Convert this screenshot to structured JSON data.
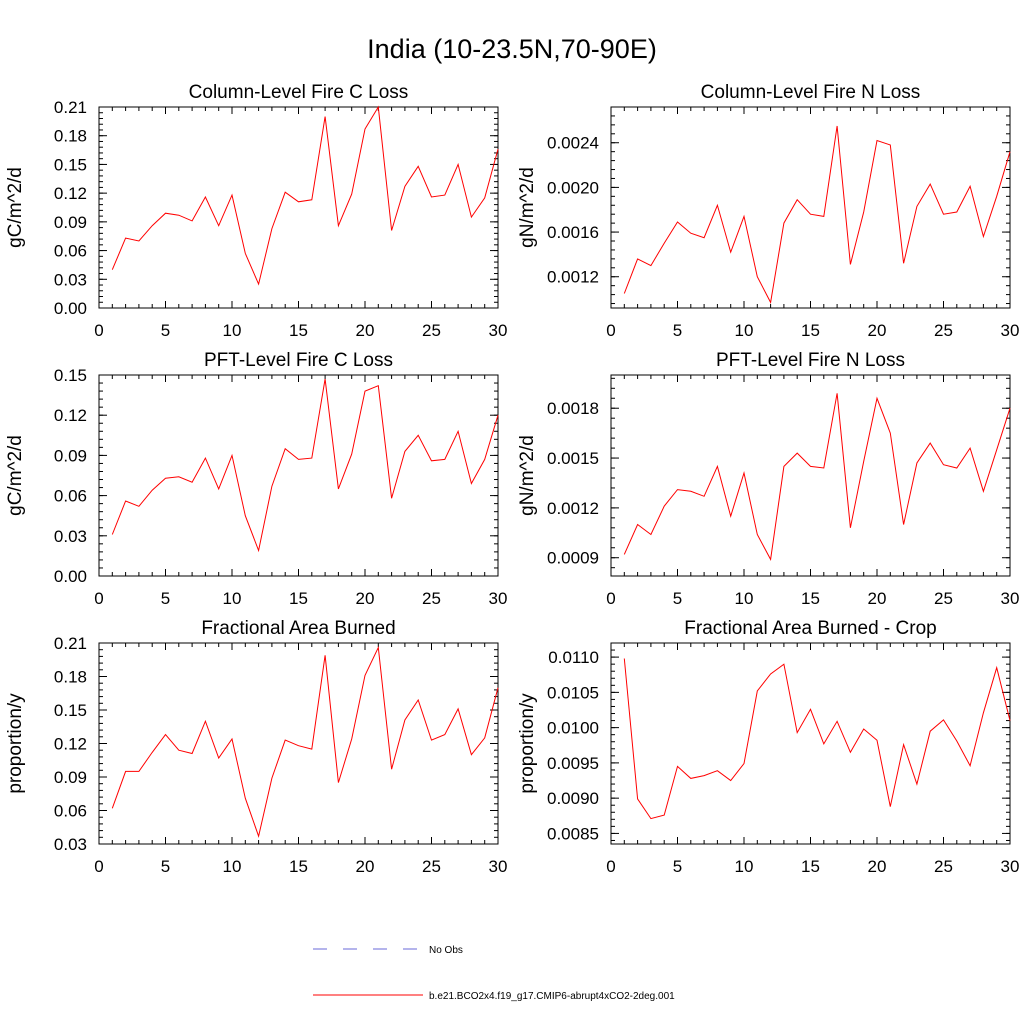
{
  "title": "India (10-23.5N,70-90E)",
  "colors": {
    "model_line": "#ff0000",
    "obs_line": "#6a6ad8",
    "axis": "#000000"
  },
  "legend": {
    "items": [
      {
        "label": "No Obs",
        "style": "dashed",
        "color": "#6a6ad8"
      },
      {
        "label": "b.e21.BCO2x4.f19_g17.CMIP6-abrupt4xCO2-2deg.001",
        "style": "solid",
        "color": "#ff0000"
      }
    ]
  },
  "chart_data": [
    {
      "type": "line",
      "title": "Column-Level Fire C Loss",
      "xlabel": "",
      "ylabel": "gC/m^2/d",
      "xlim": [
        0,
        30
      ],
      "ylim": [
        0.0,
        0.21
      ],
      "xticks": [
        "0",
        "5",
        "10",
        "15",
        "20",
        "25",
        "30"
      ],
      "yticks": [
        "0.00",
        "0.03",
        "0.06",
        "0.09",
        "0.12",
        "0.15",
        "0.18",
        "0.21"
      ],
      "x": [
        1,
        2,
        3,
        4,
        5,
        6,
        7,
        8,
        9,
        10,
        11,
        12,
        13,
        14,
        15,
        16,
        17,
        18,
        19,
        20,
        21,
        22,
        23,
        24,
        25,
        26,
        27,
        28,
        29,
        30
      ],
      "series": [
        {
          "name": "b.e21.BCO2x4.f19_g17.CMIP6-abrupt4xCO2-2deg.001",
          "values": [
            0.04,
            0.073,
            0.07,
            0.086,
            0.099,
            0.097,
            0.091,
            0.116,
            0.086,
            0.118,
            0.057,
            0.025,
            0.083,
            0.121,
            0.111,
            0.113,
            0.2,
            0.086,
            0.119,
            0.187,
            0.21,
            0.081,
            0.127,
            0.148,
            0.116,
            0.118,
            0.15,
            0.095,
            0.115,
            0.166
          ]
        }
      ]
    },
    {
      "type": "line",
      "title": "Column-Level Fire N Loss",
      "xlabel": "",
      "ylabel": "gN/m^2/d",
      "xlim": [
        0,
        30
      ],
      "ylim": [
        0.00092,
        0.00272
      ],
      "xticks": [
        "0",
        "5",
        "10",
        "15",
        "20",
        "25",
        "30"
      ],
      "yticks": [
        "0.0012",
        "0.0016",
        "0.0020",
        "0.0024"
      ],
      "x": [
        1,
        2,
        3,
        4,
        5,
        6,
        7,
        8,
        9,
        10,
        11,
        12,
        13,
        14,
        15,
        16,
        17,
        18,
        19,
        20,
        21,
        22,
        23,
        24,
        25,
        26,
        27,
        28,
        29,
        30
      ],
      "series": [
        {
          "name": "b.e21.BCO2x4.f19_g17.CMIP6-abrupt4xCO2-2deg.001",
          "values": [
            0.00105,
            0.00136,
            0.0013,
            0.0015,
            0.00169,
            0.00159,
            0.00155,
            0.00184,
            0.00142,
            0.00174,
            0.0012,
            0.00097,
            0.00168,
            0.00189,
            0.00176,
            0.00174,
            0.00255,
            0.00131,
            0.00178,
            0.00242,
            0.00238,
            0.00132,
            0.00183,
            0.00203,
            0.00176,
            0.00178,
            0.00201,
            0.00156,
            0.00192,
            0.00232
          ]
        }
      ]
    },
    {
      "type": "line",
      "title": "PFT-Level Fire C Loss",
      "xlabel": "",
      "ylabel": "gC/m^2/d",
      "xlim": [
        0,
        30
      ],
      "ylim": [
        0.0,
        0.15
      ],
      "xticks": [
        "0",
        "5",
        "10",
        "15",
        "20",
        "25",
        "30"
      ],
      "yticks": [
        "0.00",
        "0.03",
        "0.06",
        "0.09",
        "0.12",
        "0.15"
      ],
      "x": [
        1,
        2,
        3,
        4,
        5,
        6,
        7,
        8,
        9,
        10,
        11,
        12,
        13,
        14,
        15,
        16,
        17,
        18,
        19,
        20,
        21,
        22,
        23,
        24,
        25,
        26,
        27,
        28,
        29,
        30
      ],
      "series": [
        {
          "name": "b.e21.BCO2x4.f19_g17.CMIP6-abrupt4xCO2-2deg.001",
          "values": [
            0.031,
            0.056,
            0.052,
            0.064,
            0.073,
            0.074,
            0.07,
            0.088,
            0.065,
            0.09,
            0.045,
            0.019,
            0.067,
            0.095,
            0.087,
            0.088,
            0.147,
            0.065,
            0.091,
            0.138,
            0.142,
            0.058,
            0.093,
            0.105,
            0.086,
            0.087,
            0.108,
            0.069,
            0.087,
            0.12
          ]
        }
      ]
    },
    {
      "type": "line",
      "title": "PFT-Level Fire N Loss",
      "xlabel": "",
      "ylabel": "gN/m^2/d",
      "xlim": [
        0,
        30
      ],
      "ylim": [
        0.00079,
        0.002
      ],
      "xticks": [
        "0",
        "5",
        "10",
        "15",
        "20",
        "25",
        "30"
      ],
      "yticks": [
        "0.0009",
        "0.0012",
        "0.0015",
        "0.0018"
      ],
      "x": [
        1,
        2,
        3,
        4,
        5,
        6,
        7,
        8,
        9,
        10,
        11,
        12,
        13,
        14,
        15,
        16,
        17,
        18,
        19,
        20,
        21,
        22,
        23,
        24,
        25,
        26,
        27,
        28,
        29,
        30
      ],
      "series": [
        {
          "name": "b.e21.BCO2x4.f19_g17.CMIP6-abrupt4xCO2-2deg.001",
          "values": [
            0.00092,
            0.0011,
            0.00104,
            0.00121,
            0.00131,
            0.0013,
            0.00127,
            0.00145,
            0.00115,
            0.00141,
            0.00104,
            0.00089,
            0.00145,
            0.00153,
            0.00145,
            0.00144,
            0.00189,
            0.00108,
            0.00148,
            0.00186,
            0.00165,
            0.0011,
            0.00147,
            0.00159,
            0.00146,
            0.00144,
            0.00156,
            0.0013,
            0.00155,
            0.0018
          ]
        }
      ]
    },
    {
      "type": "line",
      "title": "Fractional Area Burned",
      "xlabel": "",
      "ylabel": "proportion/y",
      "xlim": [
        0,
        30
      ],
      "ylim": [
        0.03,
        0.21
      ],
      "xticks": [
        "0",
        "5",
        "10",
        "15",
        "20",
        "25",
        "30"
      ],
      "yticks": [
        "0.03",
        "0.06",
        "0.09",
        "0.12",
        "0.15",
        "0.18",
        "0.21"
      ],
      "x": [
        1,
        2,
        3,
        4,
        5,
        6,
        7,
        8,
        9,
        10,
        11,
        12,
        13,
        14,
        15,
        16,
        17,
        18,
        19,
        20,
        21,
        22,
        23,
        24,
        25,
        26,
        27,
        28,
        29,
        30
      ],
      "series": [
        {
          "name": "b.e21.BCO2x4.f19_g17.CMIP6-abrupt4xCO2-2deg.001",
          "values": [
            0.062,
            0.095,
            0.095,
            0.112,
            0.128,
            0.114,
            0.111,
            0.14,
            0.107,
            0.124,
            0.071,
            0.037,
            0.089,
            0.123,
            0.118,
            0.115,
            0.199,
            0.085,
            0.124,
            0.181,
            0.206,
            0.097,
            0.141,
            0.159,
            0.123,
            0.128,
            0.151,
            0.11,
            0.125,
            0.17
          ]
        }
      ]
    },
    {
      "type": "line",
      "title": "Fractional Area Burned - Crop",
      "xlabel": "",
      "ylabel": "proportion/y",
      "xlim": [
        0,
        30
      ],
      "ylim": [
        0.00835,
        0.0112
      ],
      "xticks": [
        "0",
        "5",
        "10",
        "15",
        "20",
        "25",
        "30"
      ],
      "yticks": [
        "0.0085",
        "0.0090",
        "0.0095",
        "0.0100",
        "0.0105",
        "0.0110"
      ],
      "x": [
        1,
        2,
        3,
        4,
        5,
        6,
        7,
        8,
        9,
        10,
        11,
        12,
        13,
        14,
        15,
        16,
        17,
        18,
        19,
        20,
        21,
        22,
        23,
        24,
        25,
        26,
        27,
        28,
        29,
        30
      ],
      "series": [
        {
          "name": "b.e21.BCO2x4.f19_g17.CMIP6-abrupt4xCO2-2deg.001",
          "values": [
            0.01098,
            0.00899,
            0.00871,
            0.00876,
            0.00945,
            0.00928,
            0.00932,
            0.00939,
            0.00925,
            0.00949,
            0.01052,
            0.01076,
            0.0109,
            0.00993,
            0.01026,
            0.00977,
            0.01009,
            0.00965,
            0.00998,
            0.00982,
            0.00888,
            0.00976,
            0.0092,
            0.00995,
            0.01011,
            0.00981,
            0.00946,
            0.01021,
            0.01085,
            0.0101
          ]
        }
      ]
    }
  ]
}
